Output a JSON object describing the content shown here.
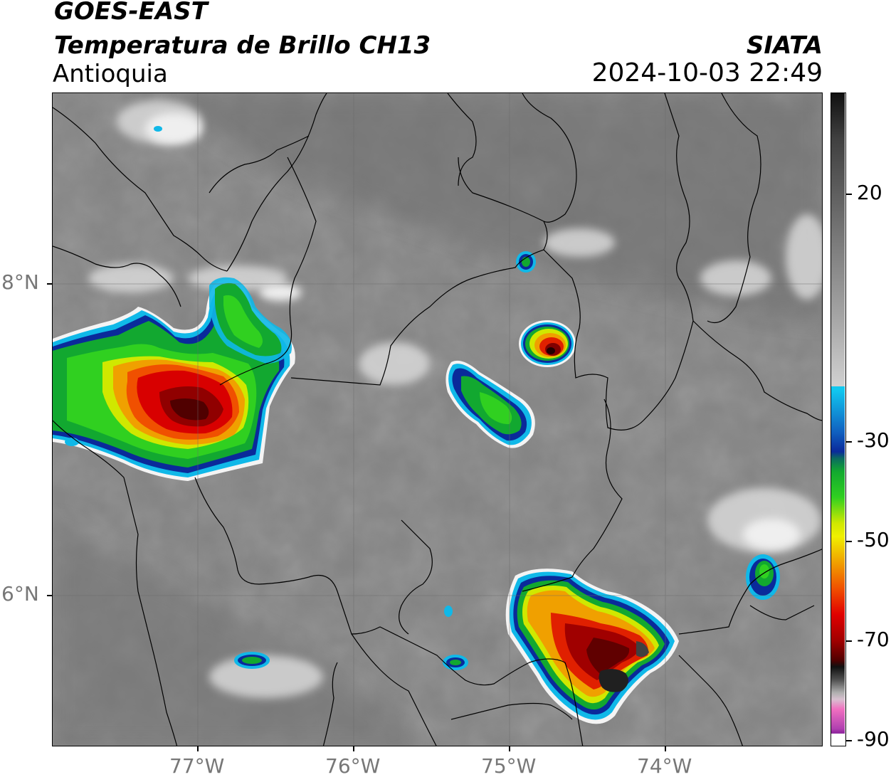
{
  "header": {
    "satellite": "GOES-EAST",
    "product": "Temperatura de Brillo CH13",
    "region": "Antioquia",
    "agency": "SIATA",
    "datetime": "2024-10-03 22:49"
  },
  "map": {
    "lat_labels": [
      "8°N",
      "6°N"
    ],
    "lon_labels": [
      "77°W",
      "76°W",
      "75°W",
      "74°W"
    ]
  },
  "colorbar": {
    "ticks": [
      "20",
      "-30",
      "-50",
      "-70",
      "-90"
    ],
    "colors": {
      "warm_gray": "#8a8a8a",
      "cold_white": "#f2f2f2",
      "cyan": "#10c8f0",
      "blue": "#0a2a9a",
      "green": "#10b030",
      "yellow": "#f0f000",
      "orange": "#f08a00",
      "red": "#e00000",
      "dark_red": "#600000",
      "black": "#101010",
      "pink": "#f070c0",
      "purple": "#8a209a"
    }
  }
}
